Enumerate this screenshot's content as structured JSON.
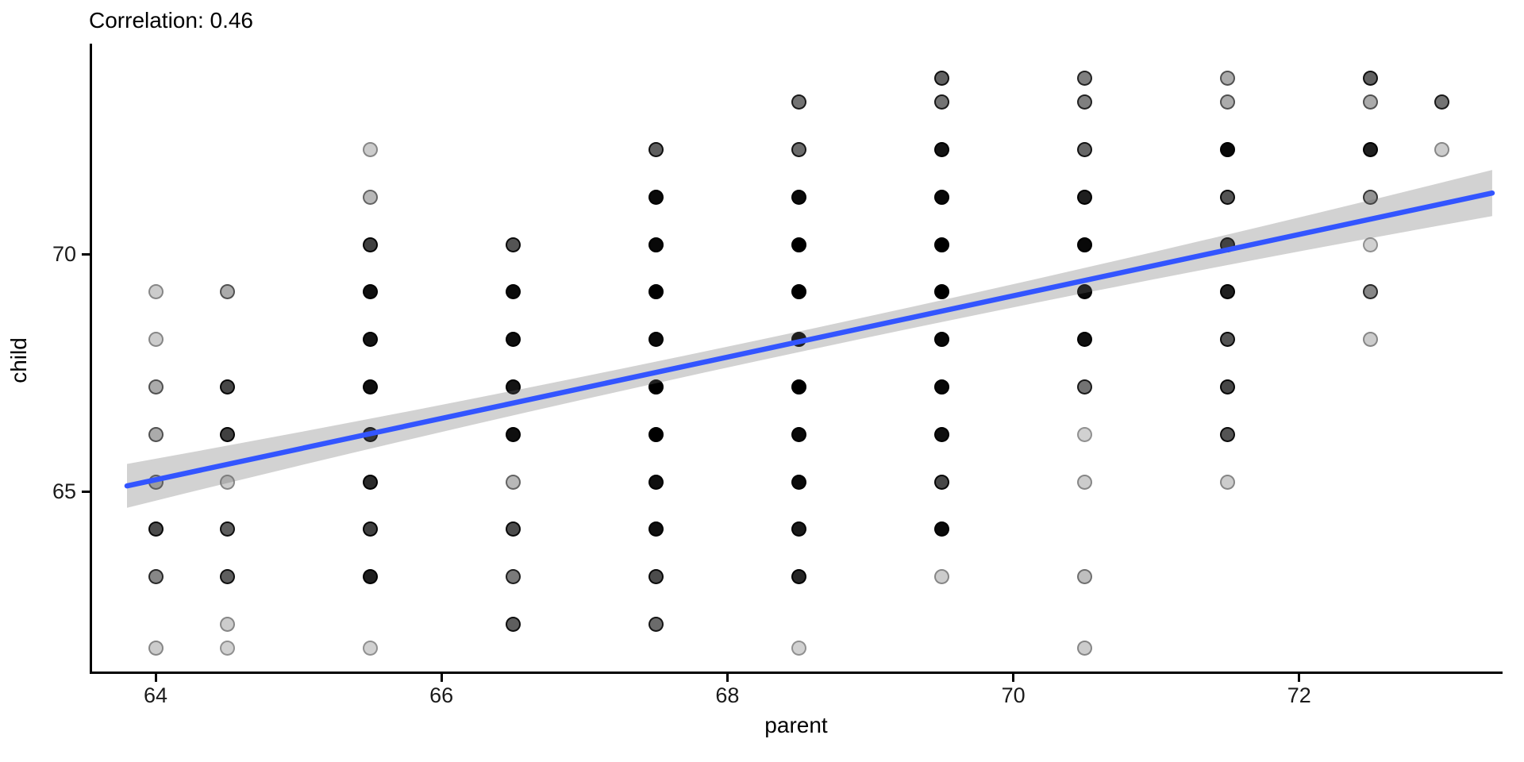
{
  "chart_data": {
    "type": "scatter",
    "title": "Correlation: 0.46",
    "xlabel": "parent",
    "ylabel": "child",
    "x_ticks": [
      64,
      66,
      68,
      70,
      72
    ],
    "y_ticks": [
      65,
      70
    ],
    "xlim": [
      63.55,
      73.4
    ],
    "ylim": [
      61.2,
      74.4
    ],
    "grid": false,
    "legend": "none",
    "point_color": "#000000",
    "points": [
      {
        "p": 69.5,
        "c": 73.7,
        "o": 0.62
      },
      {
        "p": 70.5,
        "c": 73.7,
        "o": 0.5
      },
      {
        "p": 71.5,
        "c": 73.7,
        "o": 0.33
      },
      {
        "p": 72.5,
        "c": 73.7,
        "o": 0.62
      },
      {
        "p": 68.5,
        "c": 73.2,
        "o": 0.55
      },
      {
        "p": 69.5,
        "c": 73.2,
        "o": 0.55
      },
      {
        "p": 70.5,
        "c": 73.2,
        "o": 0.5
      },
      {
        "p": 71.5,
        "c": 73.2,
        "o": 0.33
      },
      {
        "p": 72.5,
        "c": 73.2,
        "o": 0.33
      },
      {
        "p": 73,
        "c": 73.2,
        "o": 0.55
      },
      {
        "p": 65.5,
        "c": 72.2,
        "o": 0.2
      },
      {
        "p": 67.5,
        "c": 72.2,
        "o": 0.63
      },
      {
        "p": 68.5,
        "c": 72.2,
        "o": 0.58
      },
      {
        "p": 69.5,
        "c": 72.2,
        "o": 0.92
      },
      {
        "p": 70.5,
        "c": 72.2,
        "o": 0.6
      },
      {
        "p": 71.5,
        "c": 72.2,
        "o": 0.97
      },
      {
        "p": 72.5,
        "c": 72.2,
        "o": 0.88
      },
      {
        "p": 73,
        "c": 72.2,
        "o": 0.2
      },
      {
        "p": 65.5,
        "c": 71.2,
        "o": 0.28
      },
      {
        "p": 67.5,
        "c": 71.2,
        "o": 0.96
      },
      {
        "p": 68.5,
        "c": 71.2,
        "o": 0.96
      },
      {
        "p": 69.5,
        "c": 71.2,
        "o": 0.97
      },
      {
        "p": 70.5,
        "c": 71.2,
        "o": 0.88
      },
      {
        "p": 71.5,
        "c": 71.2,
        "o": 0.67
      },
      {
        "p": 72.5,
        "c": 71.2,
        "o": 0.42
      },
      {
        "p": 65.5,
        "c": 70.2,
        "o": 0.75
      },
      {
        "p": 66.5,
        "c": 70.2,
        "o": 0.67
      },
      {
        "p": 67.5,
        "c": 70.2,
        "o": 0.97
      },
      {
        "p": 68.5,
        "c": 70.2,
        "o": 1
      },
      {
        "p": 69.5,
        "c": 70.2,
        "o": 1
      },
      {
        "p": 70.5,
        "c": 70.2,
        "o": 0.97
      },
      {
        "p": 71.5,
        "c": 70.2,
        "o": 0.8
      },
      {
        "p": 72.5,
        "c": 70.2,
        "o": 0.18
      },
      {
        "p": 64,
        "c": 69.2,
        "o": 0.2
      },
      {
        "p": 64.5,
        "c": 69.2,
        "o": 0.33
      },
      {
        "p": 65.5,
        "c": 69.2,
        "o": 0.94
      },
      {
        "p": 66.5,
        "c": 69.2,
        "o": 0.96
      },
      {
        "p": 67.5,
        "c": 69.2,
        "o": 1
      },
      {
        "p": 68.5,
        "c": 69.2,
        "o": 1
      },
      {
        "p": 69.5,
        "c": 69.2,
        "o": 1
      },
      {
        "p": 70.5,
        "c": 69.2,
        "o": 0.96
      },
      {
        "p": 71.5,
        "c": 69.2,
        "o": 0.88
      },
      {
        "p": 72.5,
        "c": 69.2,
        "o": 0.47
      },
      {
        "p": 64,
        "c": 68.2,
        "o": 0.2
      },
      {
        "p": 65.5,
        "c": 68.2,
        "o": 0.92
      },
      {
        "p": 66.5,
        "c": 68.2,
        "o": 0.94
      },
      {
        "p": 67.5,
        "c": 68.2,
        "o": 0.96
      },
      {
        "p": 68.5,
        "c": 68.2,
        "o": 1
      },
      {
        "p": 69.5,
        "c": 68.2,
        "o": 0.97
      },
      {
        "p": 70.5,
        "c": 68.2,
        "o": 0.94
      },
      {
        "p": 71.5,
        "c": 68.2,
        "o": 0.67
      },
      {
        "p": 72.5,
        "c": 68.2,
        "o": 0.2
      },
      {
        "p": 64,
        "c": 67.2,
        "o": 0.33
      },
      {
        "p": 64.5,
        "c": 67.2,
        "o": 0.72
      },
      {
        "p": 65.5,
        "c": 67.2,
        "o": 0.94
      },
      {
        "p": 66.5,
        "c": 67.2,
        "o": 0.92
      },
      {
        "p": 67.5,
        "c": 67.2,
        "o": 1
      },
      {
        "p": 68.5,
        "c": 67.2,
        "o": 1
      },
      {
        "p": 69.5,
        "c": 67.2,
        "o": 0.97
      },
      {
        "p": 70.5,
        "c": 67.2,
        "o": 0.55
      },
      {
        "p": 71.5,
        "c": 67.2,
        "o": 0.72
      },
      {
        "p": 64,
        "c": 66.2,
        "o": 0.33
      },
      {
        "p": 64.5,
        "c": 66.2,
        "o": 0.75
      },
      {
        "p": 65.5,
        "c": 66.2,
        "o": 0.85
      },
      {
        "p": 66.5,
        "c": 66.2,
        "o": 0.94
      },
      {
        "p": 67.5,
        "c": 66.2,
        "o": 1
      },
      {
        "p": 68.5,
        "c": 66.2,
        "o": 0.96
      },
      {
        "p": 69.5,
        "c": 66.2,
        "o": 0.94
      },
      {
        "p": 70.5,
        "c": 66.2,
        "o": 0.18
      },
      {
        "p": 71.5,
        "c": 66.2,
        "o": 0.67
      },
      {
        "p": 64,
        "c": 65.2,
        "o": 0.3
      },
      {
        "p": 64.5,
        "c": 65.2,
        "o": 0.2
      },
      {
        "p": 65.5,
        "c": 65.2,
        "o": 0.83
      },
      {
        "p": 66.5,
        "c": 65.2,
        "o": 0.28
      },
      {
        "p": 67.5,
        "c": 65.2,
        "o": 0.94
      },
      {
        "p": 68.5,
        "c": 65.2,
        "o": 0.96
      },
      {
        "p": 69.5,
        "c": 65.2,
        "o": 0.72
      },
      {
        "p": 70.5,
        "c": 65.2,
        "o": 0.2
      },
      {
        "p": 71.5,
        "c": 65.2,
        "o": 0.2
      },
      {
        "p": 64,
        "c": 64.2,
        "o": 0.7
      },
      {
        "p": 64.5,
        "c": 64.2,
        "o": 0.63
      },
      {
        "p": 65.5,
        "c": 64.2,
        "o": 0.75
      },
      {
        "p": 66.5,
        "c": 64.2,
        "o": 0.7
      },
      {
        "p": 67.5,
        "c": 64.2,
        "o": 0.94
      },
      {
        "p": 68.5,
        "c": 64.2,
        "o": 0.9
      },
      {
        "p": 69.5,
        "c": 64.2,
        "o": 0.96
      },
      {
        "p": 64,
        "c": 63.2,
        "o": 0.47
      },
      {
        "p": 64.5,
        "c": 63.2,
        "o": 0.63
      },
      {
        "p": 65.5,
        "c": 63.2,
        "o": 0.88
      },
      {
        "p": 66.5,
        "c": 63.2,
        "o": 0.52
      },
      {
        "p": 67.5,
        "c": 63.2,
        "o": 0.7
      },
      {
        "p": 68.5,
        "c": 63.2,
        "o": 0.85
      },
      {
        "p": 69.5,
        "c": 63.2,
        "o": 0.2
      },
      {
        "p": 70.5,
        "c": 63.2,
        "o": 0.25
      },
      {
        "p": 64.5,
        "c": 62.2,
        "o": 0.2
      },
      {
        "p": 66.5,
        "c": 62.2,
        "o": 0.63
      },
      {
        "p": 67.5,
        "c": 62.2,
        "o": 0.58
      },
      {
        "p": 64,
        "c": 61.7,
        "o": 0.2
      },
      {
        "p": 64.5,
        "c": 61.7,
        "o": 0.18
      },
      {
        "p": 65.5,
        "c": 61.7,
        "o": 0.18
      },
      {
        "p": 68.5,
        "c": 61.7,
        "o": 0.18
      },
      {
        "p": 70.5,
        "c": 61.7,
        "o": 0.2
      }
    ],
    "regression": {
      "type": "lm",
      "slope": 0.646,
      "intercept": 23.9,
      "x_start": 63.8,
      "x_end": 73.35,
      "line_color": "#3355FF",
      "ci_band": true
    }
  }
}
